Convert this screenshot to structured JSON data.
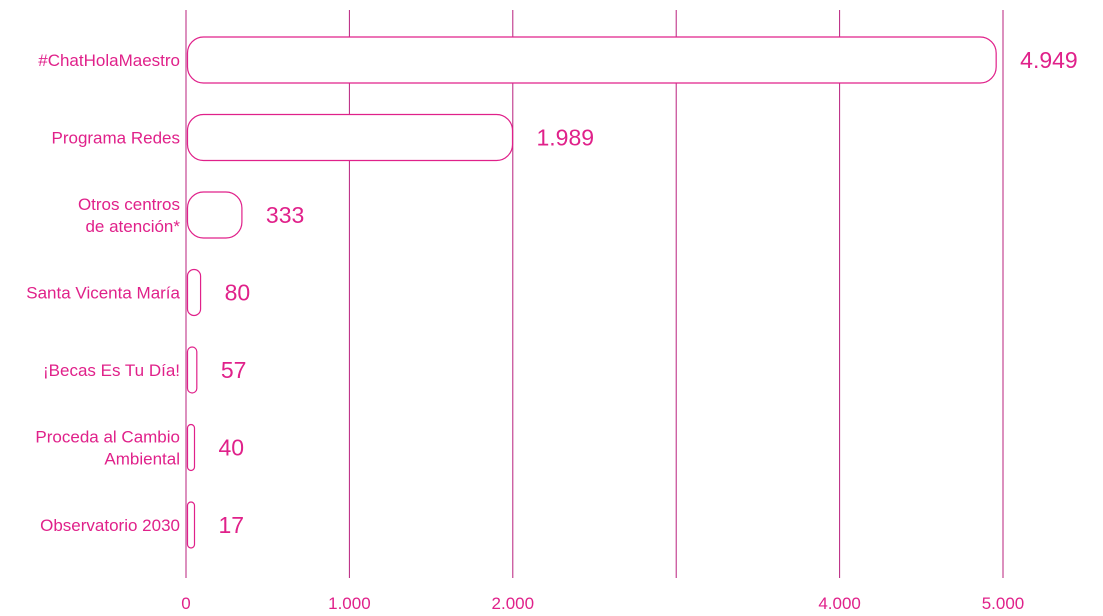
{
  "chart_data": {
    "type": "bar",
    "orientation": "horizontal",
    "categories": [
      [
        "#ChatHolaMaestro"
      ],
      [
        "Programa Redes"
      ],
      [
        "Otros centros",
        "de atención*"
      ],
      [
        "Santa Vicenta María"
      ],
      [
        "¡Becas Es Tu Día!"
      ],
      [
        "Proceda al Cambio",
        "Ambiental"
      ],
      [
        "Observatorio 2030"
      ]
    ],
    "values": [
      4949,
      1989,
      333,
      80,
      57,
      40,
      17
    ],
    "value_labels": [
      "4.949",
      "1.989",
      "333",
      "80",
      "57",
      "40",
      "17"
    ],
    "x_ticks": [
      {
        "value": 0,
        "label": "0"
      },
      {
        "value": 1000,
        "label": "1.000"
      },
      {
        "value": 2000,
        "label": "2.000"
      },
      {
        "value": 3000,
        "label": ""
      },
      {
        "value": 4000,
        "label": "4.000"
      },
      {
        "value": 5000,
        "label": "5.000"
      }
    ],
    "xlim": [
      0,
      5000
    ],
    "title": "",
    "xlabel": "",
    "ylabel": "",
    "grid": true,
    "legend": "none",
    "colors": {
      "accent": "#e0218a",
      "grid": "#b8207d",
      "bar_fill": "#ffffff"
    }
  }
}
